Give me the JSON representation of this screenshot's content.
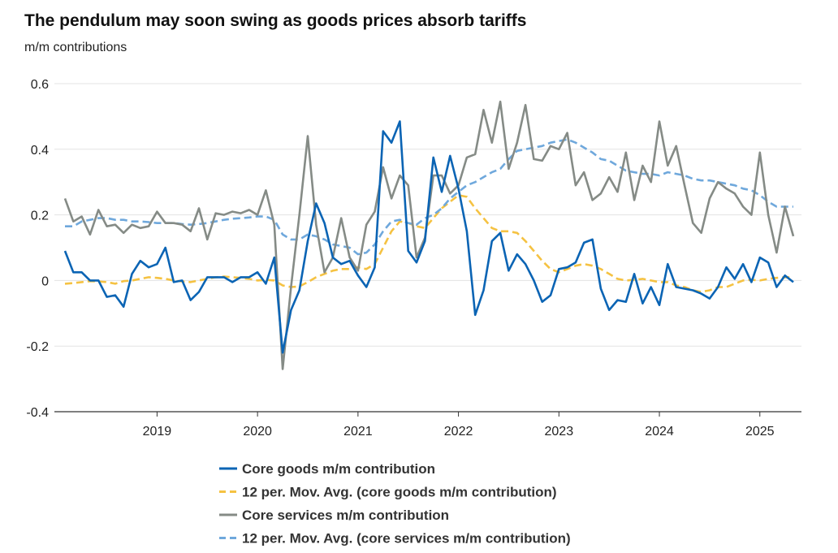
{
  "chart_data": {
    "type": "line",
    "title": "The pendulum may soon swing as goods prices absorb tariffs",
    "subtitle": "m/m contributions",
    "xlabel": "",
    "ylabel": "m/m contributions",
    "x_start": "2018-02",
    "x_end": "2025-05",
    "frequency": "monthly",
    "ylim": [
      -0.4,
      0.6
    ],
    "yticks": [
      "0.6",
      "0.4",
      "0.2",
      "0",
      "-0.2",
      "-0.4"
    ],
    "ytick_values": [
      0.6,
      0.4,
      0.2,
      0,
      -0.2,
      -0.4
    ],
    "xticks": [
      "2019",
      "2020",
      "2021",
      "2022",
      "2023",
      "2024",
      "2025"
    ],
    "xtick_index": [
      11,
      23,
      35,
      47,
      59,
      71,
      83
    ],
    "grid": true,
    "legend_position": "bottom",
    "series": [
      {
        "name": "Core goods m/m contribution",
        "color": "#0b64b4",
        "dash": false,
        "values": [
          0.09,
          0.025,
          0.025,
          0.0,
          0.0,
          -0.05,
          -0.045,
          -0.08,
          0.02,
          0.06,
          0.04,
          0.05,
          0.1,
          -0.005,
          0.0,
          -0.06,
          -0.035,
          0.01,
          0.01,
          0.01,
          -0.005,
          0.01,
          0.01,
          0.025,
          -0.01,
          0.07,
          -0.22,
          -0.09,
          -0.03,
          0.12,
          0.235,
          0.175,
          0.07,
          0.05,
          0.06,
          0.015,
          -0.02,
          0.04,
          0.455,
          0.42,
          0.485,
          0.09,
          0.055,
          0.12,
          0.375,
          0.27,
          0.38,
          0.28,
          0.15,
          -0.105,
          -0.03,
          0.12,
          0.145,
          0.03,
          0.08,
          0.05,
          0.0,
          -0.065,
          -0.045,
          0.035,
          0.04,
          0.055,
          0.115,
          0.125,
          -0.025,
          -0.09,
          -0.06,
          -0.065,
          0.02,
          -0.07,
          -0.02,
          -0.075,
          0.05,
          -0.02,
          -0.025,
          -0.03,
          -0.04,
          -0.055,
          -0.02,
          0.04,
          0.005,
          0.05,
          -0.005,
          0.07,
          0.055,
          -0.02,
          0.015,
          -0.005
        ]
      },
      {
        "name": "12 per. Mov. Avg. (core goods m/m contribution)",
        "color": "#f5c242",
        "dash": true,
        "values": [
          -0.01,
          -0.008,
          -0.005,
          -0.002,
          -0.003,
          -0.005,
          -0.01,
          -0.002,
          0.0,
          0.005,
          0.01,
          0.008,
          0.005,
          0.0,
          -0.003,
          -0.005,
          0.0,
          0.005,
          0.01,
          0.012,
          0.01,
          0.008,
          0.005,
          0.0,
          0.002,
          0.0,
          -0.015,
          -0.02,
          -0.018,
          -0.005,
          0.01,
          0.02,
          0.03,
          0.035,
          0.035,
          0.04,
          0.035,
          0.05,
          0.1,
          0.15,
          0.18,
          0.175,
          0.165,
          0.16,
          0.19,
          0.22,
          0.24,
          0.26,
          0.255,
          0.22,
          0.19,
          0.16,
          0.15,
          0.15,
          0.145,
          0.12,
          0.09,
          0.06,
          0.035,
          0.025,
          0.035,
          0.045,
          0.05,
          0.045,
          0.035,
          0.02,
          0.005,
          0.0,
          0.002,
          0.005,
          0.0,
          -0.005,
          -0.005,
          -0.015,
          -0.02,
          -0.03,
          -0.035,
          -0.03,
          -0.02,
          -0.02,
          -0.01,
          0.0,
          0.002,
          0.0,
          0.005,
          0.008,
          0.01,
          0.01
        ]
      },
      {
        "name": "Core services m/m contribution",
        "color": "#858b86",
        "dash": false,
        "values": [
          0.25,
          0.18,
          0.195,
          0.14,
          0.215,
          0.165,
          0.17,
          0.145,
          0.17,
          0.16,
          0.165,
          0.21,
          0.175,
          0.175,
          0.17,
          0.15,
          0.22,
          0.125,
          0.205,
          0.2,
          0.21,
          0.205,
          0.215,
          0.2,
          0.275,
          0.17,
          -0.27,
          -0.02,
          0.2,
          0.44,
          0.17,
          0.025,
          0.07,
          0.19,
          0.07,
          0.03,
          0.17,
          0.21,
          0.345,
          0.25,
          0.32,
          0.29,
          0.07,
          0.13,
          0.32,
          0.32,
          0.265,
          0.29,
          0.375,
          0.385,
          0.52,
          0.42,
          0.545,
          0.34,
          0.42,
          0.535,
          0.37,
          0.365,
          0.41,
          0.4,
          0.45,
          0.29,
          0.33,
          0.245,
          0.265,
          0.315,
          0.27,
          0.39,
          0.245,
          0.35,
          0.3,
          0.485,
          0.35,
          0.41,
          0.29,
          0.175,
          0.145,
          0.25,
          0.3,
          0.28,
          0.265,
          0.225,
          0.2,
          0.39,
          0.2,
          0.085,
          0.225,
          0.135
        ]
      },
      {
        "name": "12 per. Mov. Avg. (core services m/m contribution)",
        "color": "#6fa8dc",
        "dash": true,
        "values": [
          0.165,
          0.165,
          0.18,
          0.185,
          0.19,
          0.19,
          0.185,
          0.185,
          0.18,
          0.18,
          0.178,
          0.175,
          0.175,
          0.175,
          0.172,
          0.17,
          0.172,
          0.175,
          0.18,
          0.185,
          0.188,
          0.19,
          0.192,
          0.195,
          0.195,
          0.185,
          0.14,
          0.125,
          0.125,
          0.14,
          0.135,
          0.125,
          0.11,
          0.105,
          0.1,
          0.08,
          0.085,
          0.11,
          0.15,
          0.18,
          0.185,
          0.175,
          0.17,
          0.19,
          0.2,
          0.22,
          0.25,
          0.27,
          0.29,
          0.3,
          0.315,
          0.33,
          0.34,
          0.37,
          0.395,
          0.4,
          0.405,
          0.41,
          0.42,
          0.425,
          0.43,
          0.42,
          0.405,
          0.39,
          0.37,
          0.365,
          0.35,
          0.335,
          0.33,
          0.325,
          0.325,
          0.32,
          0.33,
          0.325,
          0.32,
          0.31,
          0.305,
          0.305,
          0.3,
          0.295,
          0.29,
          0.28,
          0.275,
          0.26,
          0.24,
          0.225,
          0.225,
          0.225
        ]
      }
    ]
  }
}
